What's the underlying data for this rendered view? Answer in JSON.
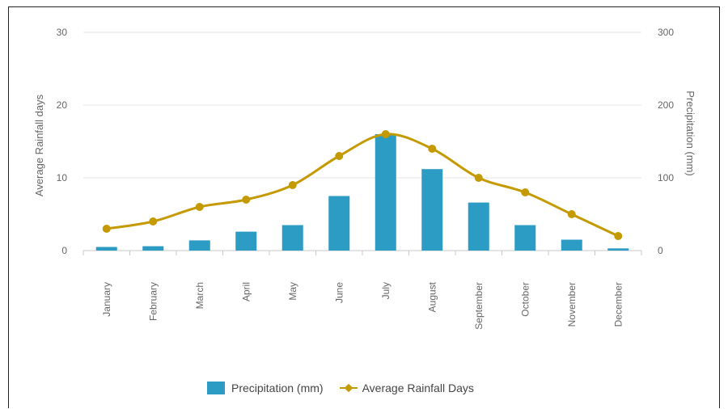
{
  "colors": {
    "bar": "#2c9cc4",
    "line": "#c49a00",
    "grid": "#e6e6e6",
    "axis_text": "#666666"
  },
  "chart_data": {
    "type": "bar",
    "categories": [
      "January",
      "February",
      "March",
      "April",
      "May",
      "June",
      "July",
      "August",
      "September",
      "October",
      "November",
      "December"
    ],
    "series": [
      {
        "name": "Precipitation (mm)",
        "type": "bar",
        "axis": "right",
        "values": [
          5,
          6,
          14,
          26,
          35,
          75,
          160,
          112,
          66,
          35,
          15,
          3
        ]
      },
      {
        "name": "Average Rainfall Days",
        "type": "line",
        "axis": "left",
        "values": [
          3,
          4,
          6,
          7,
          9,
          13,
          16,
          14,
          10,
          8,
          5,
          2
        ]
      }
    ],
    "left_axis": {
      "label": "Average Rainfall days",
      "min": 0,
      "max": 30,
      "ticks": [
        "0",
        "10",
        "20",
        "30"
      ]
    },
    "right_axis": {
      "label": "Precipitation (mm)",
      "min": 0,
      "max": 300,
      "ticks": [
        "0",
        "100",
        "200",
        "300"
      ]
    },
    "grid": true,
    "legend_position": "bottom"
  }
}
